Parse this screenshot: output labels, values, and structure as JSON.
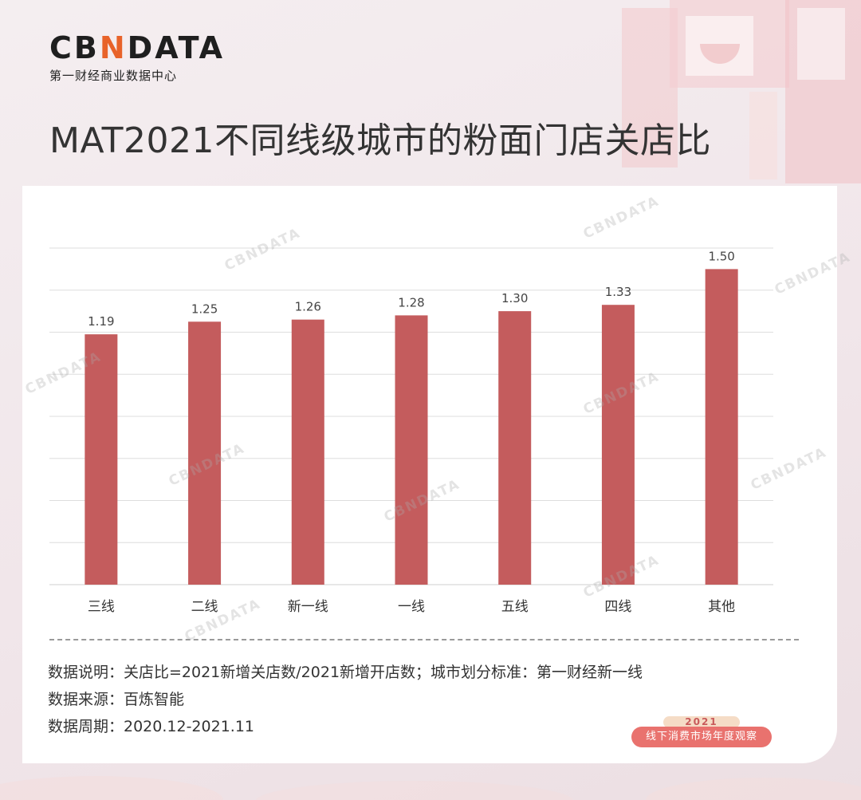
{
  "brand": {
    "logo_prefix": "CB",
    "logo_mid": "N",
    "logo_suffix": "DATA",
    "subtitle": "第一财经商业数据中心"
  },
  "page_title": "MAT2021不同线级城市的粉面门店关店比",
  "colors": {
    "bar": "#c45c5d",
    "grid": "#dedede",
    "text": "#333333",
    "accent": "#e8632a"
  },
  "chart_data": {
    "type": "bar",
    "categories": [
      "三线",
      "二线",
      "新一线",
      "一线",
      "五线",
      "四线",
      "其他"
    ],
    "values": [
      1.19,
      1.25,
      1.26,
      1.28,
      1.3,
      1.33,
      1.5
    ],
    "value_labels": [
      "1.19",
      "1.25",
      "1.26",
      "1.28",
      "1.30",
      "1.33",
      "1.50"
    ],
    "ylim": [
      0,
      1.6
    ],
    "grid": true
  },
  "notes": {
    "explanation": "数据说明：关店比=2021新增关店数/2021新增开店数；城市划分标准：第一财经新一线",
    "source": "数据来源：百炼智能",
    "period": "数据周期：2020.12-2021.11"
  },
  "badge": {
    "year": "2021",
    "text": "线下消费市场年度观察"
  },
  "watermark": "CBNDATA"
}
